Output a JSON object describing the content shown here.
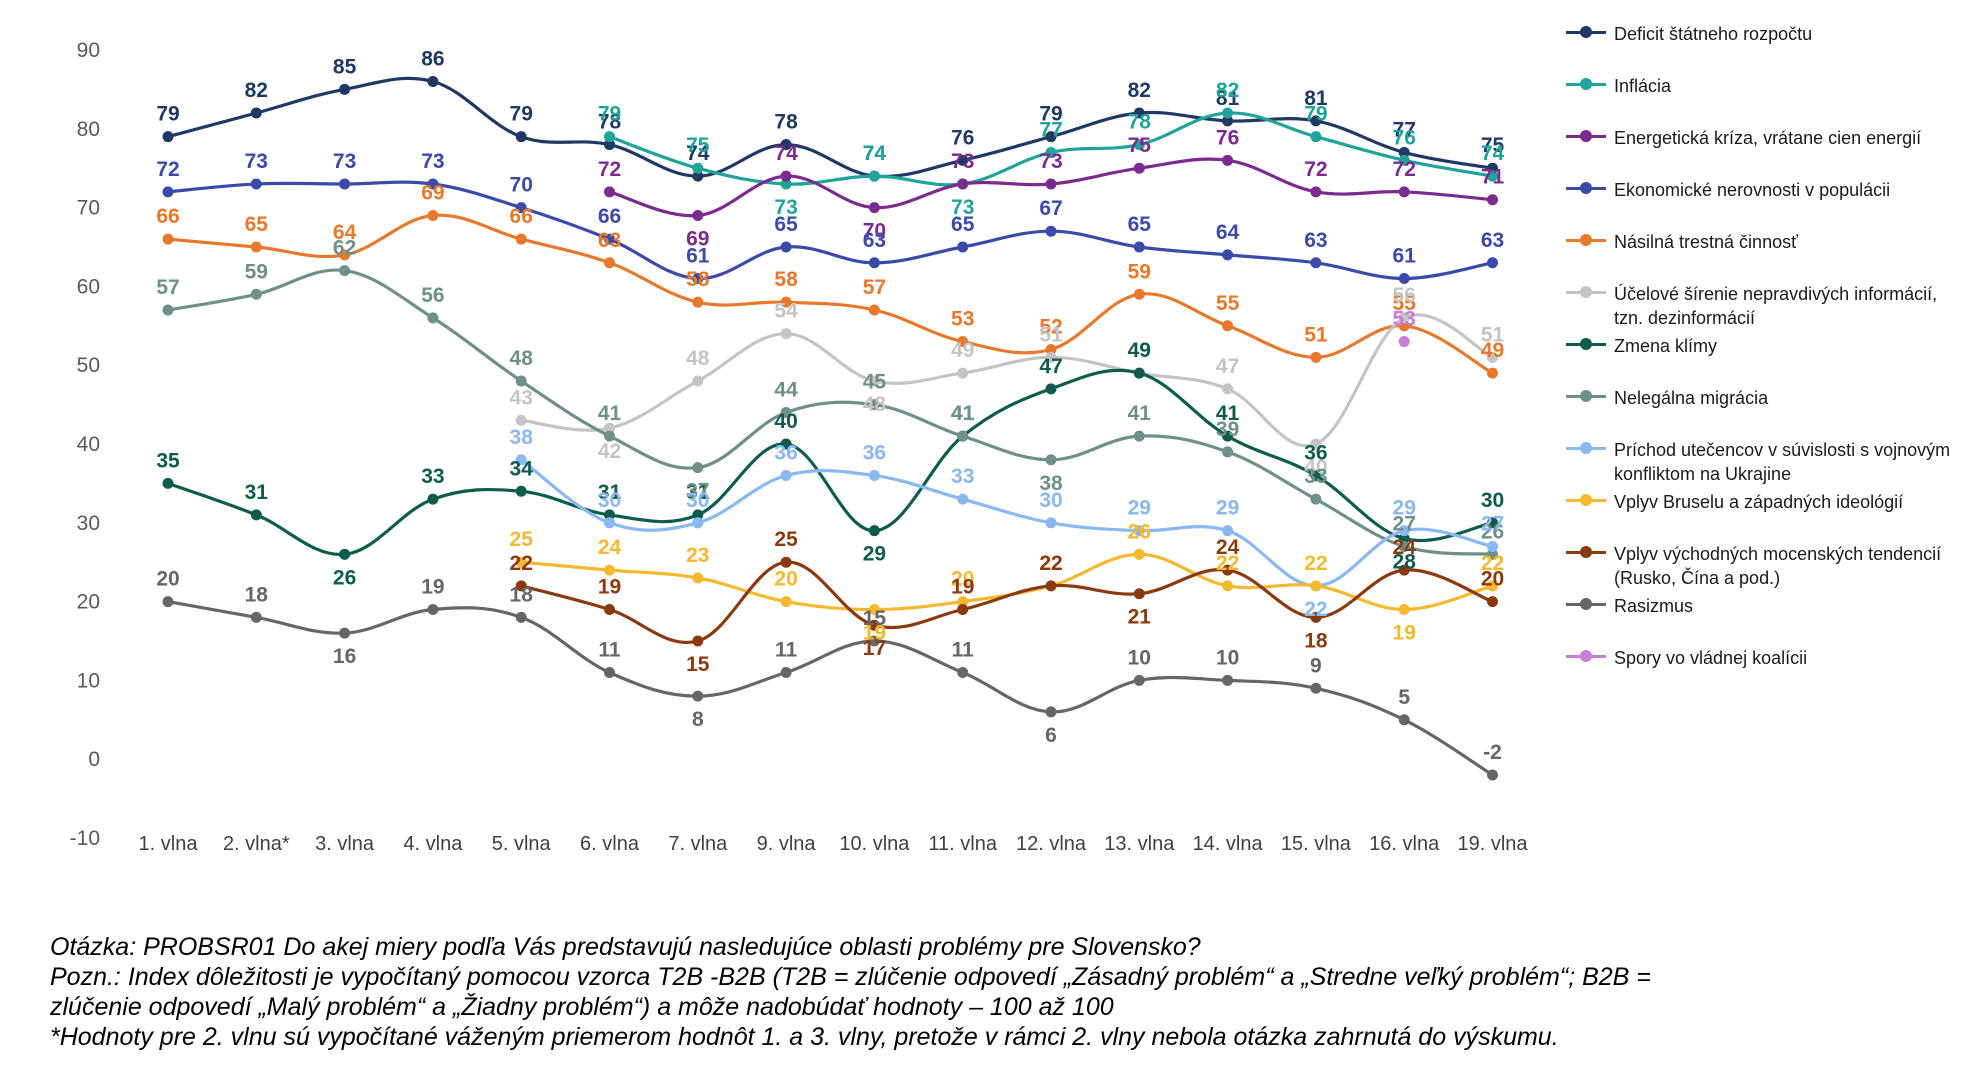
{
  "chart_data": {
    "type": "line",
    "title": "",
    "xlabel": "",
    "ylabel": "",
    "ylim": [
      -10,
      90
    ],
    "yticks": [
      -10,
      0,
      10,
      20,
      30,
      40,
      50,
      60,
      70,
      80,
      90
    ],
    "grid": false,
    "legend_position": "right",
    "categories": [
      "1. vlna",
      "2. vlna*",
      "3. vlna",
      "4. vlna",
      "5. vlna",
      "6. vlna",
      "7. vlna",
      "9. vlna",
      "10. vlna",
      "11. vlna",
      "12. vlna",
      "13. vlna",
      "14. vlna",
      "15. vlna",
      "16. vlna",
      "19. vlna"
    ],
    "series": [
      {
        "name": "Deficit štátneho rozpočtu",
        "color": "#1f3864",
        "values": [
          79,
          82,
          85,
          86,
          79,
          78,
          74,
          78,
          74,
          76,
          79,
          82,
          81,
          81,
          77,
          75
        ]
      },
      {
        "name": "Inflácia",
        "color": "#1fa39a",
        "values": [
          null,
          null,
          null,
          null,
          null,
          79,
          75,
          73,
          74,
          73,
          77,
          78,
          82,
          79,
          76,
          74
        ]
      },
      {
        "name": "Energetická kríza, vrátane cien energií",
        "color": "#7b2a8e",
        "values": [
          null,
          null,
          null,
          null,
          null,
          72,
          69,
          74,
          70,
          73,
          73,
          75,
          76,
          72,
          72,
          71
        ]
      },
      {
        "name": "Ekonomické nerovnosti v populácii",
        "color": "#3b4aa8",
        "values": [
          72,
          73,
          73,
          73,
          70,
          66,
          61,
          65,
          63,
          65,
          67,
          65,
          64,
          63,
          61,
          63
        ]
      },
      {
        "name": "Násilná trestná činnosť",
        "color": "#e8792c",
        "values": [
          66,
          65,
          64,
          69,
          66,
          63,
          58,
          58,
          57,
          53,
          52,
          59,
          55,
          51,
          55,
          49
        ]
      },
      {
        "name": "Účelové šírenie nepravdivých informácií, tzn. dezinformácií",
        "color": "#c4c4c4",
        "values": [
          null,
          null,
          null,
          null,
          43,
          42,
          48,
          54,
          48,
          49,
          51,
          49,
          47,
          40,
          56,
          51
        ]
      },
      {
        "name": "Zmena klímy",
        "color": "#0f5c4f",
        "values": [
          35,
          31,
          26,
          33,
          34,
          31,
          31,
          40,
          29,
          41,
          47,
          49,
          41,
          36,
          28,
          30
        ]
      },
      {
        "name": "Nelegálna migrácia",
        "color": "#6e9089",
        "values": [
          57,
          59,
          62,
          56,
          48,
          41,
          37,
          44,
          45,
          41,
          38,
          41,
          39,
          33,
          27,
          26
        ]
      },
      {
        "name": "Príchod utečencov v súvislosti s vojnovým konfliktom na Ukrajine",
        "color": "#8ab8f0",
        "values": [
          null,
          null,
          null,
          null,
          38,
          30,
          30,
          36,
          36,
          33,
          30,
          29,
          29,
          22,
          29,
          27
        ]
      },
      {
        "name": "Vplyv Bruselu a západných ideológií",
        "color": "#f5b82e",
        "values": [
          null,
          null,
          null,
          null,
          25,
          24,
          23,
          20,
          19,
          20,
          22,
          26,
          22,
          22,
          19,
          22
        ]
      },
      {
        "name": "Vplyv východných mocenských tendencií (Rusko, Čína a pod.)",
        "color": "#8b3a0f",
        "values": [
          null,
          null,
          null,
          null,
          22,
          19,
          15,
          25,
          17,
          19,
          22,
          21,
          24,
          18,
          24,
          20
        ]
      },
      {
        "name": "Rasizmus",
        "color": "#666666",
        "values": [
          20,
          18,
          16,
          19,
          18,
          11,
          8,
          11,
          15,
          11,
          6,
          10,
          10,
          9,
          5,
          -2
        ]
      },
      {
        "name": "Spory vo vládnej koalícii",
        "color": "#c77dd8",
        "values": [
          null,
          null,
          null,
          null,
          null,
          null,
          null,
          null,
          null,
          null,
          null,
          null,
          null,
          null,
          53,
          null
        ]
      }
    ]
  },
  "notes": {
    "line1": "Otázka: PROBSR01 Do akej miery podľa Vás predstavujú nasledujúce oblasti problémy pre Slovensko?",
    "line2": "Pozn.: Index dôležitosti je vypočítaný pomocou vzorca T2B -B2B (T2B = zlúčenie odpovedí „Zásadný problém“ a „Stredne veľký problém“; B2B =",
    "line3": "zlúčenie odpovedí „Malý problém“ a „Žiadny problém“) a môže nadobúdať hodnoty – 100 až 100",
    "line4": "*Hodnoty pre  2. vlnu sú vypočítané váženým priemerom hodnôt 1. a 3. vlny, pretože v rámci 2. vlny nebola otázka zahrnutá do výskumu."
  }
}
